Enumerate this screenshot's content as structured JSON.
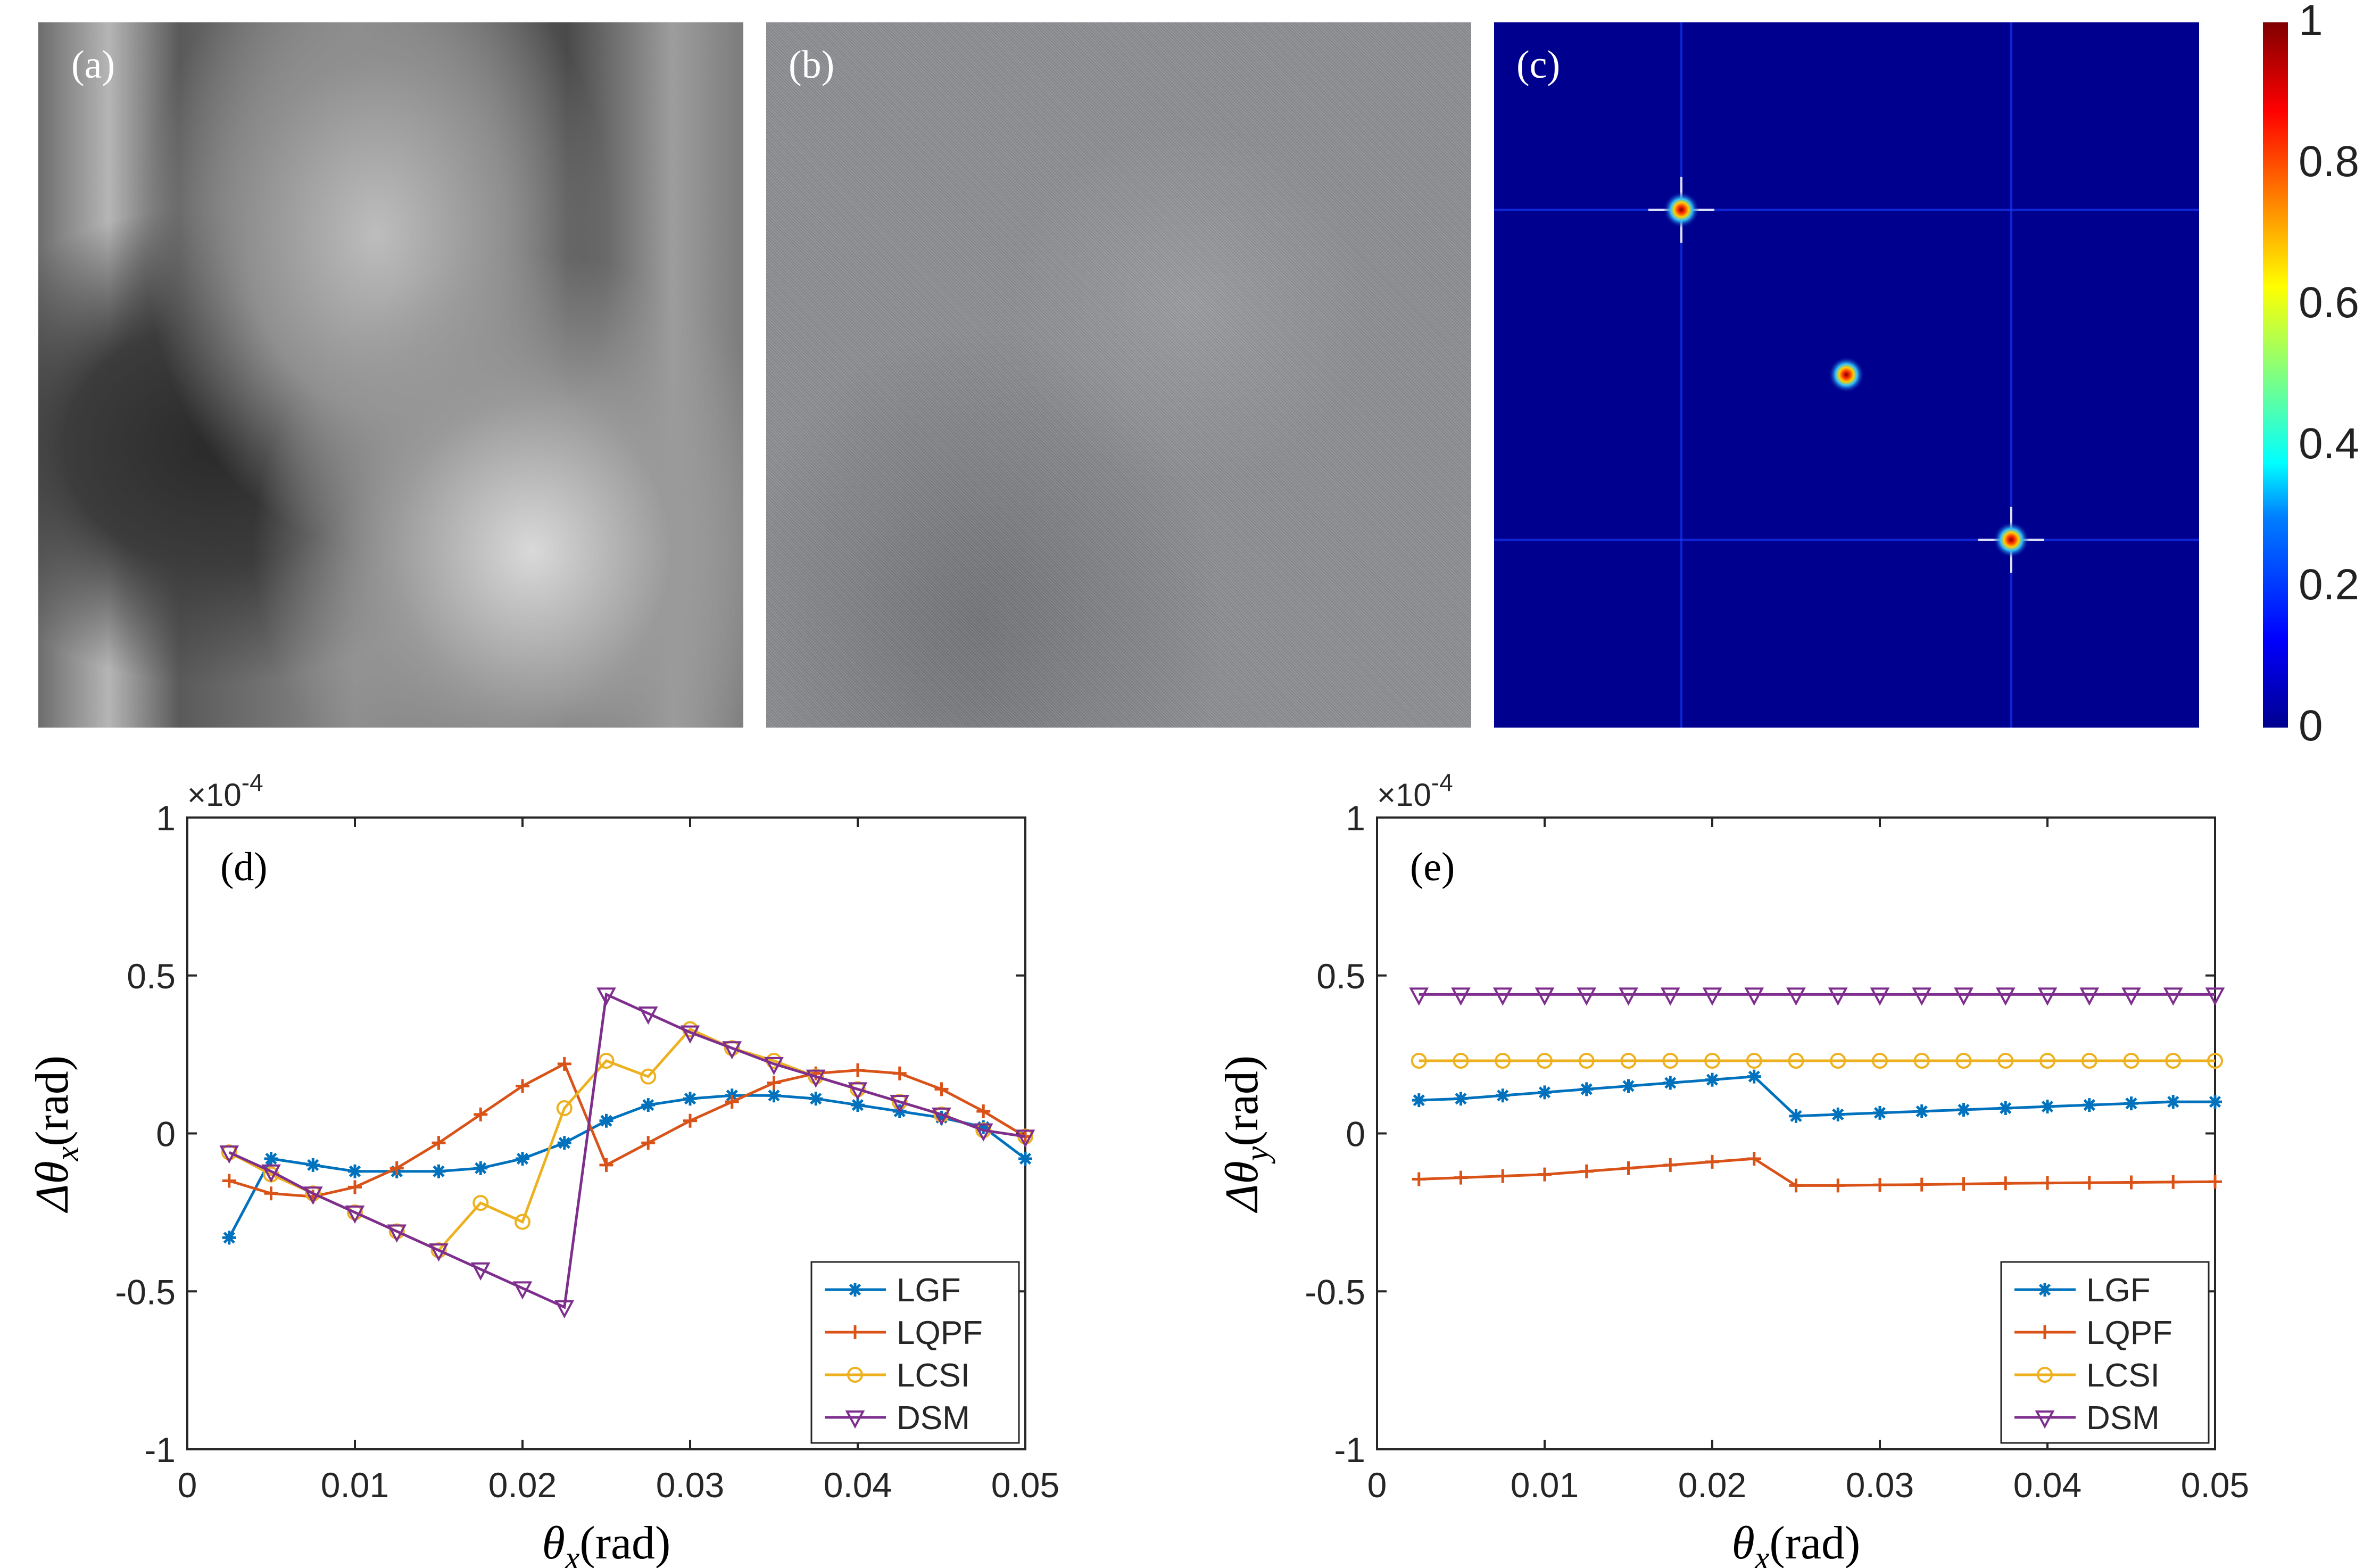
{
  "panels_top": {
    "a": {
      "label": "(a)"
    },
    "b": {
      "label": "(b)"
    },
    "c": {
      "label": "(c)"
    },
    "colorbar": {
      "ticks": [
        "0",
        "0.2",
        "0.4",
        "0.6",
        "0.8",
        "1"
      ]
    }
  },
  "colors": {
    "LGF": "#0072BD",
    "LQPF": "#D95319",
    "LCSI": "#EDB120",
    "DSM": "#7E2F8E",
    "colormap_low": "#00008f",
    "colormap_high": "#800000"
  },
  "chart_data": [
    {
      "id": "d",
      "type": "line",
      "panel_label": "(d)",
      "xlabel": "θx(rad)",
      "ylabel": "Δθx(rad)",
      "y_scale_label": "×10-4",
      "xlim": [
        0,
        0.05
      ],
      "ylim": [
        -1,
        1
      ],
      "xticks": [
        "0",
        "0.01",
        "0.02",
        "0.03",
        "0.04",
        "0.05"
      ],
      "yticks": [
        "-1",
        "-0.5",
        "0",
        "0.5",
        "1"
      ],
      "legend_location": "bottom-right",
      "series": [
        {
          "name": "LGF",
          "marker": "asterisk",
          "x": [
            0.0025,
            0.005,
            0.0075,
            0.01,
            0.0125,
            0.015,
            0.0175,
            0.02,
            0.0225,
            0.025,
            0.0275,
            0.03,
            0.0325,
            0.035,
            0.0375,
            0.04,
            0.0425,
            0.045,
            0.0475,
            0.05
          ],
          "y": [
            -0.33,
            -0.08,
            -0.1,
            -0.12,
            -0.12,
            -0.12,
            -0.11,
            -0.08,
            -0.03,
            0.04,
            0.09,
            0.11,
            0.12,
            0.12,
            0.11,
            0.09,
            0.07,
            0.05,
            0.02,
            -0.08
          ]
        },
        {
          "name": "LQPF",
          "marker": "plus",
          "x": [
            0.0025,
            0.005,
            0.0075,
            0.01,
            0.0125,
            0.015,
            0.0175,
            0.02,
            0.0225,
            0.025,
            0.0275,
            0.03,
            0.0325,
            0.035,
            0.0375,
            0.04,
            0.0425,
            0.045,
            0.0475,
            0.05
          ],
          "y": [
            -0.15,
            -0.19,
            -0.2,
            -0.17,
            -0.11,
            -0.03,
            0.06,
            0.15,
            0.22,
            -0.1,
            -0.03,
            0.04,
            0.1,
            0.16,
            0.19,
            0.2,
            0.19,
            0.14,
            0.07,
            -0.01
          ]
        },
        {
          "name": "LCSI",
          "marker": "circle",
          "x": [
            0.0025,
            0.005,
            0.0075,
            0.01,
            0.0125,
            0.015,
            0.0175,
            0.02,
            0.0225,
            0.025,
            0.0275,
            0.03,
            0.0325,
            0.035,
            0.0375,
            0.04,
            0.0425,
            0.045,
            0.0475,
            0.05
          ],
          "y": [
            -0.06,
            -0.13,
            -0.19,
            -0.25,
            -0.31,
            -0.37,
            -0.22,
            -0.28,
            0.08,
            0.23,
            0.18,
            0.33,
            0.27,
            0.23,
            0.18,
            0.14,
            0.1,
            0.06,
            0.01,
            -0.01
          ]
        },
        {
          "name": "DSM",
          "marker": "triangle-down",
          "x": [
            0.0025,
            0.005,
            0.0075,
            0.01,
            0.0125,
            0.015,
            0.0175,
            0.02,
            0.0225,
            0.025,
            0.0275,
            0.03,
            0.0325,
            0.035,
            0.0375,
            0.04,
            0.0425,
            0.045,
            0.0475,
            0.05
          ],
          "y": [
            -0.06,
            -0.12,
            -0.19,
            -0.25,
            -0.31,
            -0.37,
            -0.43,
            -0.49,
            -0.55,
            0.44,
            0.38,
            0.32,
            0.27,
            0.22,
            0.18,
            0.14,
            0.1,
            0.06,
            0.01,
            -0.01
          ]
        }
      ]
    },
    {
      "id": "e",
      "type": "line",
      "panel_label": "(e)",
      "xlabel": "θx(rad)",
      "ylabel": "Δθy(rad)",
      "y_scale_label": "×10-4",
      "xlim": [
        0,
        0.05
      ],
      "ylim": [
        -1,
        1
      ],
      "xticks": [
        "0",
        "0.01",
        "0.02",
        "0.03",
        "0.04",
        "0.05"
      ],
      "yticks": [
        "-1",
        "-0.5",
        "0",
        "0.5",
        "1"
      ],
      "legend_location": "bottom-right",
      "series": [
        {
          "name": "LGF",
          "marker": "asterisk",
          "x": [
            0.0025,
            0.005,
            0.0075,
            0.01,
            0.0125,
            0.015,
            0.0175,
            0.02,
            0.0225,
            0.025,
            0.0275,
            0.03,
            0.0325,
            0.035,
            0.0375,
            0.04,
            0.0425,
            0.045,
            0.0475,
            0.05
          ],
          "y": [
            0.105,
            0.11,
            0.12,
            0.13,
            0.14,
            0.15,
            0.16,
            0.17,
            0.18,
            0.055,
            0.06,
            0.065,
            0.07,
            0.075,
            0.08,
            0.085,
            0.09,
            0.095,
            0.1,
            0.1
          ]
        },
        {
          "name": "LQPF",
          "marker": "plus",
          "x": [
            0.0025,
            0.005,
            0.0075,
            0.01,
            0.0125,
            0.015,
            0.0175,
            0.02,
            0.0225,
            0.025,
            0.0275,
            0.03,
            0.0325,
            0.035,
            0.0375,
            0.04,
            0.0425,
            0.045,
            0.0475,
            0.05
          ],
          "y": [
            -0.145,
            -0.14,
            -0.135,
            -0.13,
            -0.12,
            -0.11,
            -0.1,
            -0.09,
            -0.08,
            -0.165,
            -0.165,
            -0.163,
            -0.162,
            -0.16,
            -0.158,
            -0.157,
            -0.156,
            -0.155,
            -0.154,
            -0.153
          ]
        },
        {
          "name": "LCSI",
          "marker": "circle",
          "x": [
            0.0025,
            0.005,
            0.0075,
            0.01,
            0.0125,
            0.015,
            0.0175,
            0.02,
            0.0225,
            0.025,
            0.0275,
            0.03,
            0.0325,
            0.035,
            0.0375,
            0.04,
            0.0425,
            0.045,
            0.0475,
            0.05
          ],
          "y": [
            0.23,
            0.23,
            0.23,
            0.23,
            0.23,
            0.23,
            0.23,
            0.23,
            0.23,
            0.23,
            0.23,
            0.23,
            0.23,
            0.23,
            0.23,
            0.23,
            0.23,
            0.23,
            0.23,
            0.23
          ]
        },
        {
          "name": "DSM",
          "marker": "triangle-down",
          "x": [
            0.0025,
            0.005,
            0.0075,
            0.01,
            0.0125,
            0.015,
            0.0175,
            0.02,
            0.0225,
            0.025,
            0.0275,
            0.03,
            0.0325,
            0.035,
            0.0375,
            0.04,
            0.0425,
            0.045,
            0.0475,
            0.05
          ],
          "y": [
            0.44,
            0.44,
            0.44,
            0.44,
            0.44,
            0.44,
            0.44,
            0.44,
            0.44,
            0.44,
            0.44,
            0.44,
            0.44,
            0.44,
            0.44,
            0.44,
            0.44,
            0.44,
            0.44,
            0.44
          ]
        }
      ]
    }
  ]
}
